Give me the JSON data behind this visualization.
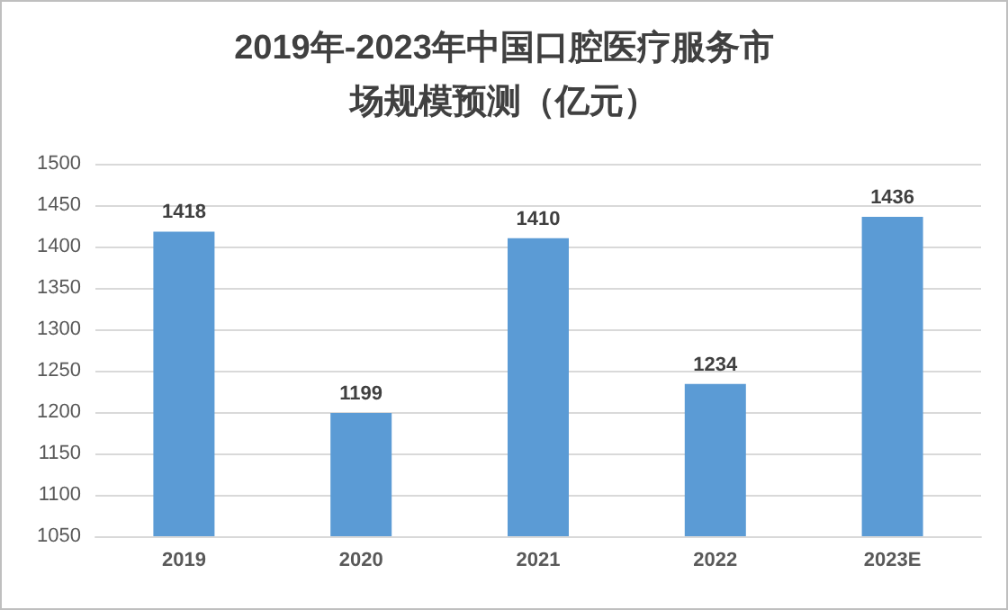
{
  "chart_data": {
    "type": "bar",
    "title": "2019年-2023年中国口腔医疗服务市场规模预测（亿元）",
    "categories": [
      "2019",
      "2020",
      "2021",
      "2022",
      "2023E"
    ],
    "values": [
      1418,
      1199,
      1410,
      1234,
      1436
    ],
    "color": "#5b9bd5",
    "ylim": [
      1050,
      1500
    ],
    "yticks": [
      1050,
      1100,
      1150,
      1200,
      1250,
      1300,
      1350,
      1400,
      1450,
      1500
    ],
    "grid": "y",
    "data_labels": true
  }
}
